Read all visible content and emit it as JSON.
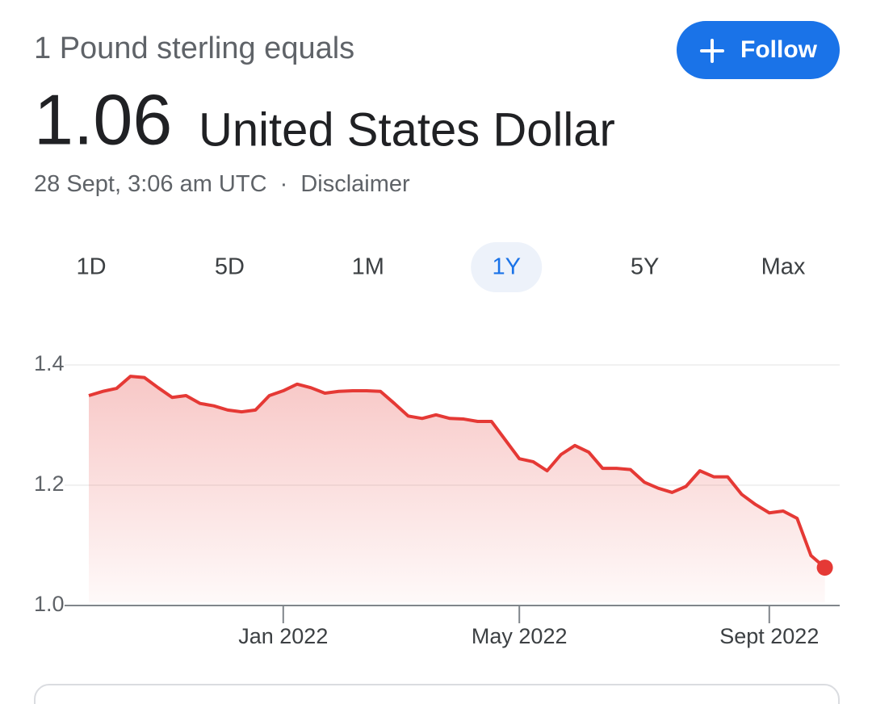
{
  "header": {
    "subtitle": "1 Pound sterling equals",
    "amount": "1.06",
    "currency": "United States Dollar",
    "timestamp": "28 Sept, 3:06 am UTC",
    "separator": "·",
    "disclaimer": "Disclaimer",
    "follow_button": "Follow"
  },
  "range_tabs": {
    "tabs": [
      "1D",
      "5D",
      "1M",
      "1Y",
      "5Y",
      "Max"
    ],
    "selected": "1Y"
  },
  "chart_data": {
    "type": "line",
    "categories": [
      null,
      null,
      null,
      null,
      null,
      null,
      null,
      null,
      null,
      null,
      null,
      null,
      null,
      null,
      "Jan 2022",
      null,
      null,
      null,
      null,
      null,
      null,
      null,
      null,
      null,
      null,
      null,
      null,
      null,
      null,
      null,
      null,
      "May 2022",
      null,
      null,
      null,
      null,
      null,
      null,
      null,
      null,
      null,
      null,
      null,
      null,
      null,
      null,
      null,
      null,
      null,
      "Sept 2022",
      null,
      null,
      null,
      null
    ],
    "values": [
      1.349,
      1.356,
      1.361,
      1.381,
      1.379,
      1.362,
      1.346,
      1.349,
      1.336,
      1.332,
      1.325,
      1.322,
      1.325,
      1.349,
      1.357,
      1.368,
      1.362,
      1.353,
      1.356,
      1.357,
      1.357,
      1.356,
      1.336,
      1.315,
      1.311,
      1.317,
      1.311,
      1.31,
      1.306,
      1.306,
      1.275,
      1.244,
      1.239,
      1.224,
      1.251,
      1.266,
      1.255,
      1.228,
      1.228,
      1.226,
      1.205,
      1.195,
      1.188,
      1.198,
      1.224,
      1.214,
      1.214,
      1.185,
      1.168,
      1.154,
      1.157,
      1.145,
      1.083,
      1.063
    ],
    "color": "#e53935",
    "ylim": [
      1,
      1.4
    ],
    "yticks": [
      {
        "value": 1,
        "label": "1.0"
      },
      1.2,
      1.4
    ],
    "grid": true
  }
}
